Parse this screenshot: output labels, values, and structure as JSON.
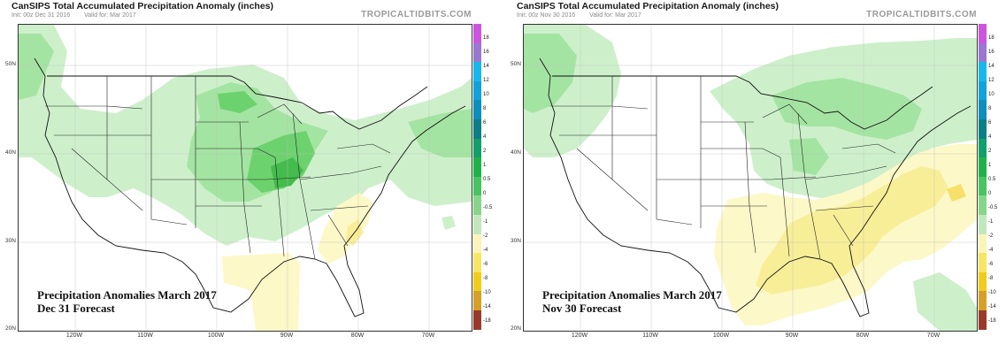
{
  "panels": [
    {
      "title": "CanSIPS Total Accumulated Precipitation Anomaly (inches)",
      "init": "Init: 00z Dec 31 2016",
      "valid": "Valid for: Mar 2017",
      "brand": "TROPICALTIDBITS.COM",
      "annotation_line1": "Precipitation Anomalies March 2017",
      "annotation_line2": "Dec 31 Forecast"
    },
    {
      "title": "CanSIPS Total Accumulated Precipitation Anomaly (inches)",
      "init": "Init: 00z Nov 30 2016",
      "valid": "Valid for: Mar 2017",
      "brand": "TROPICALTIDBITS.COM",
      "annotation_line1": "Precipitation Anomalies March 2017",
      "annotation_line2": "Nov 30 Forecast"
    }
  ],
  "latitude_labels": [
    "50N",
    "40N",
    "30N",
    "20N"
  ],
  "longitude_labels": [
    "120W",
    "110W",
    "100W",
    "90W",
    "80W",
    "70W"
  ],
  "colorbar": {
    "labels": [
      "18",
      "16",
      "14",
      "12",
      "10",
      "8",
      "6",
      "4",
      "2",
      "1",
      "0.5",
      "0",
      "-0.5",
      "-1",
      "-2",
      "-4",
      "-6",
      "-8",
      "-10",
      "-14",
      "-18"
    ],
    "colors": [
      "#cc55dd",
      "#9a78d0",
      "#18b8ec",
      "#12a2da",
      "#0d8fbc",
      "#0a7f86",
      "#12a06a",
      "#20b24a",
      "#48c460",
      "#86d68a",
      "#c0e8bc",
      "#ffffff",
      "#fbf4b8",
      "#f6e664",
      "#f2cc1c",
      "#d6a028",
      "#b27a3a",
      "#983a2a",
      "#b81210",
      "#980000",
      "#e01078"
    ]
  },
  "anomaly_colors": {
    "wet_light": "#cdf0cb",
    "wet_medium": "#a4e4a2",
    "wet_strong": "#6cd26e",
    "wet_heavy": "#44bb4d",
    "dry_light": "#fdf8c8",
    "dry_medium": "#f8ee98"
  }
}
